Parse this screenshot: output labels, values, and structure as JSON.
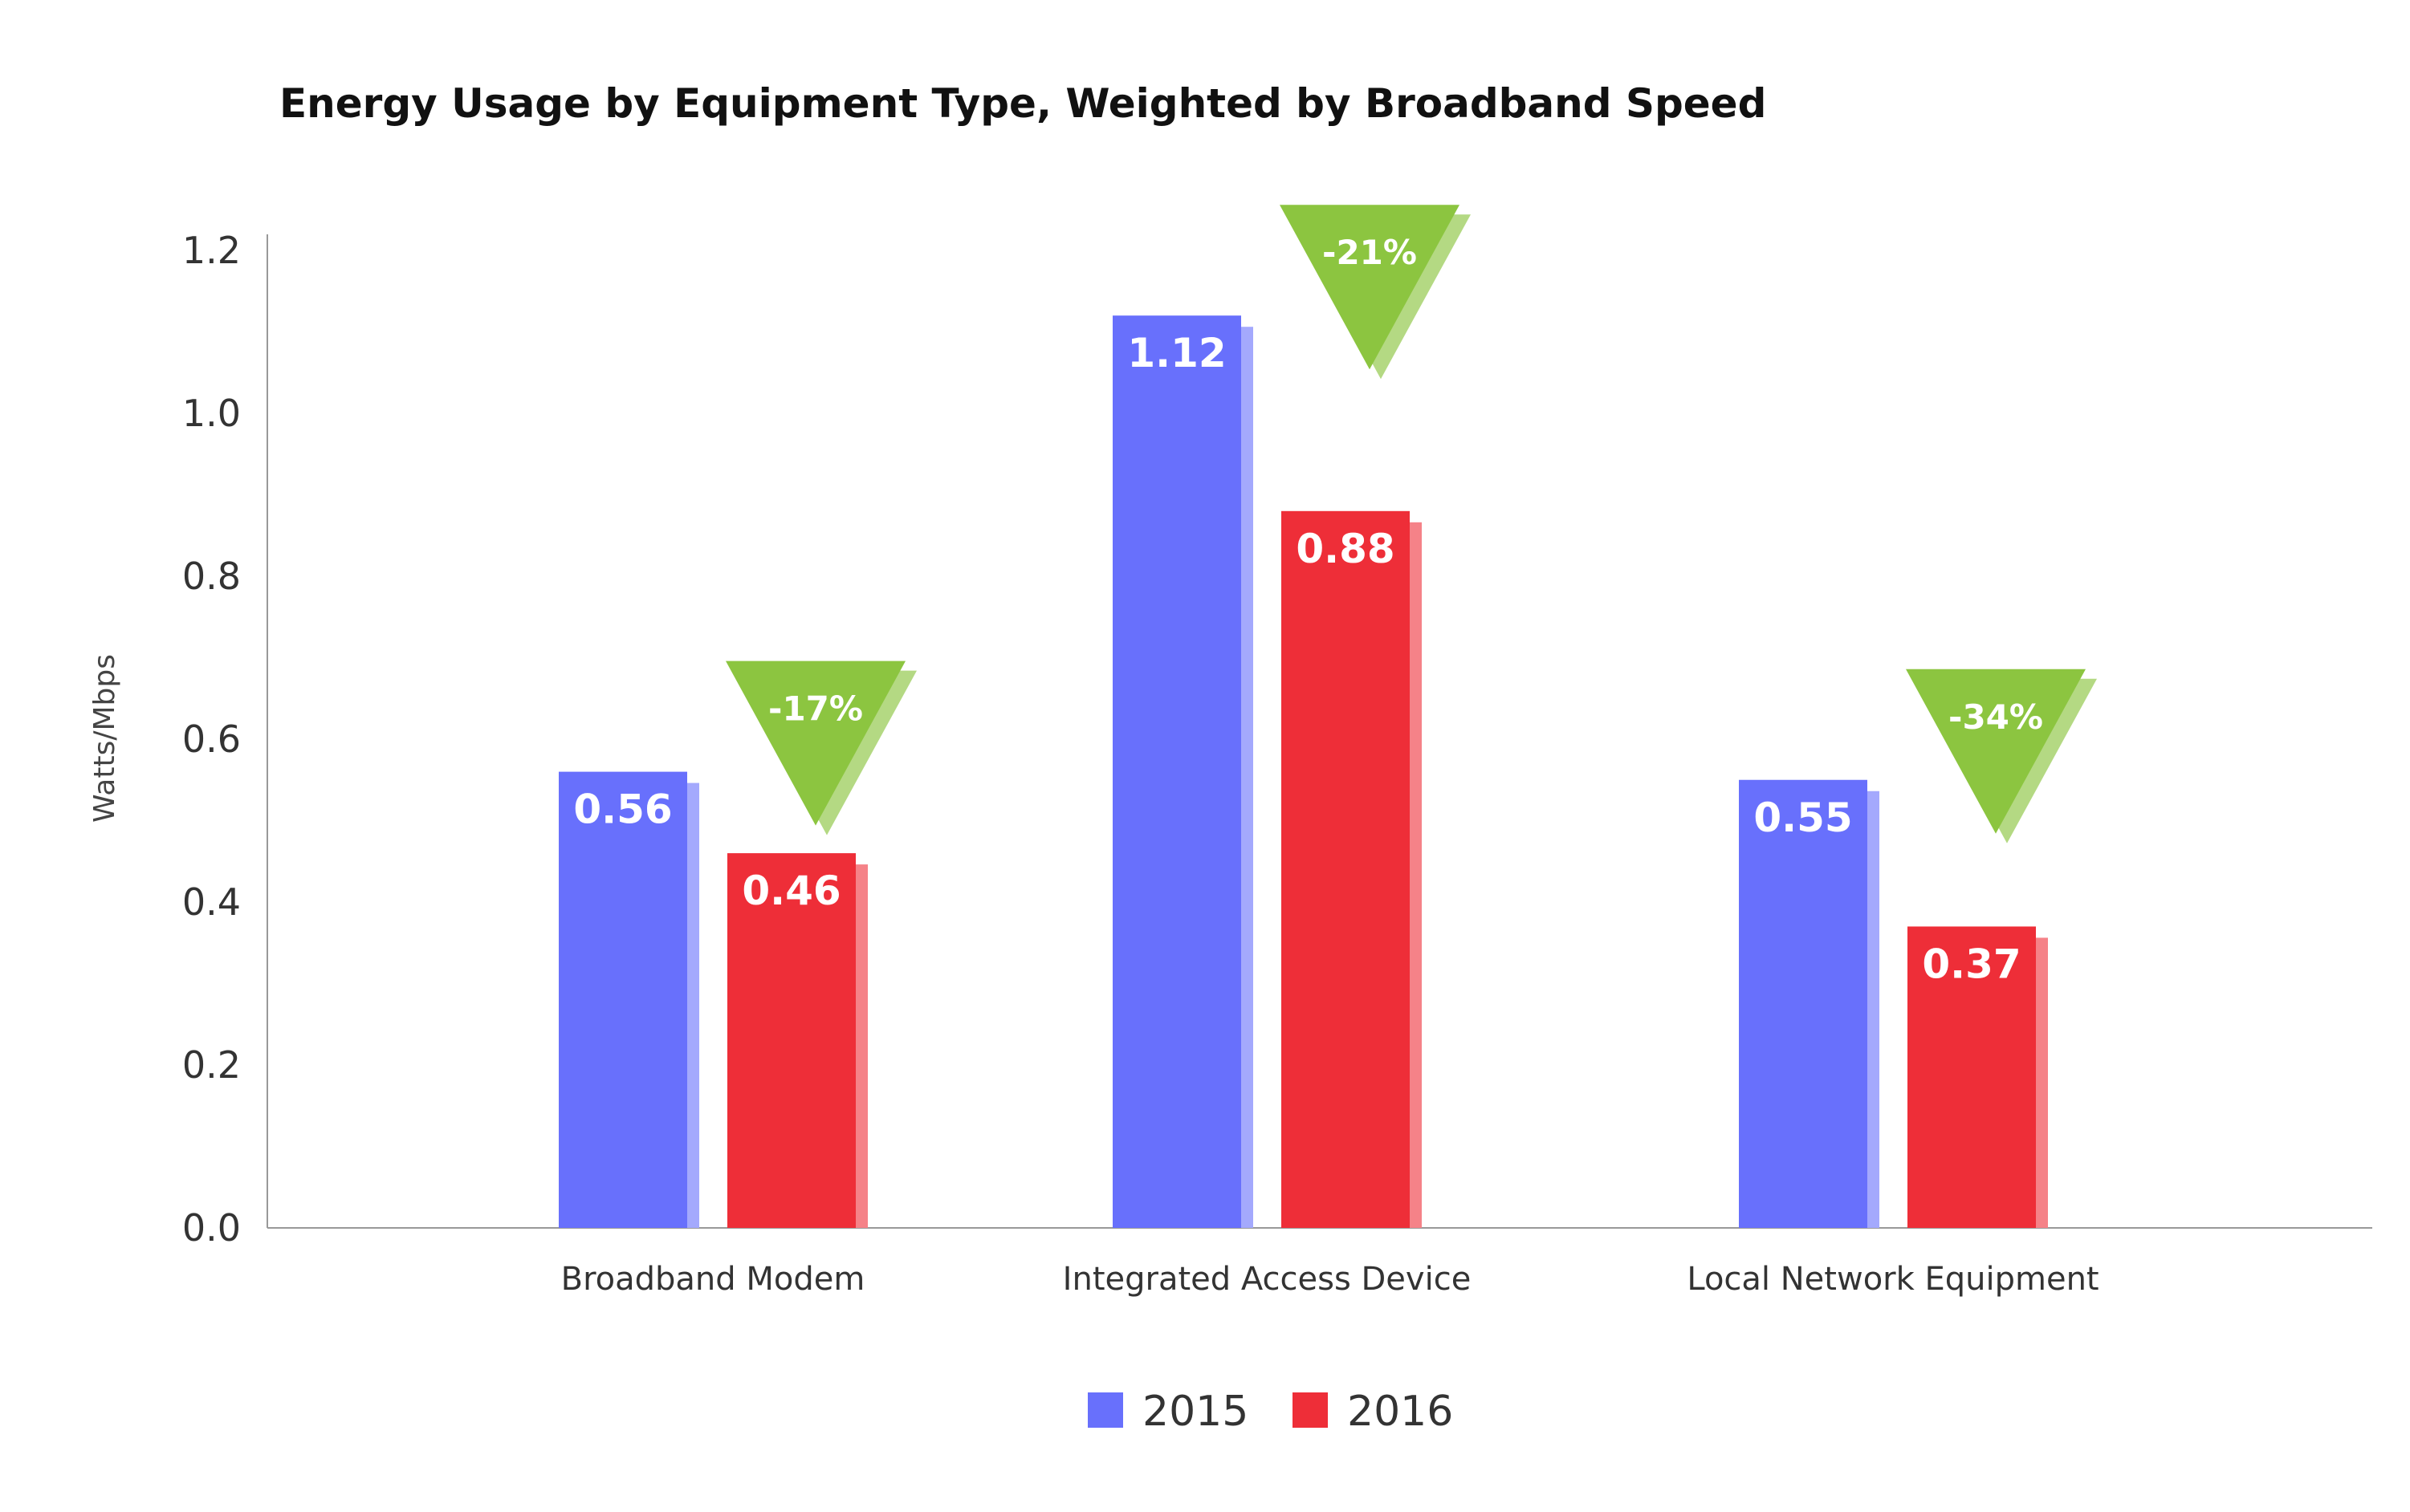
{
  "chart_data": {
    "type": "bar",
    "title": "Energy Usage by Equipment Type, Weighted by Broadband Speed",
    "ylabel": "Watts/Mbps",
    "xlabel": "",
    "ylim": [
      0,
      1.2
    ],
    "yticks": [
      "0.0",
      "0.2",
      "0.4",
      "0.6",
      "0.8",
      "1.0",
      "1.2"
    ],
    "grid": false,
    "legend_position": "bottom-center",
    "categories": [
      "Broadband Modem",
      "Integrated Access Device",
      "Local Network Equipment"
    ],
    "series": [
      {
        "name": "2015",
        "color": "#6870fc",
        "values": [
          0.56,
          1.12,
          0.55
        ],
        "labels": [
          "0.56",
          "1.12",
          "0.55"
        ]
      },
      {
        "name": "2016",
        "color": "#ee2e38",
        "values": [
          0.46,
          0.88,
          0.37
        ],
        "labels": [
          "0.46",
          "0.88",
          "0.37"
        ]
      }
    ],
    "annotations": [
      {
        "category": "Broadband Modem",
        "text": "-17%"
      },
      {
        "category": "Integrated Access Device",
        "text": "-21%"
      },
      {
        "category": "Local Network Equipment",
        "text": "-34%"
      }
    ],
    "annotation_color": "#8cc540"
  }
}
